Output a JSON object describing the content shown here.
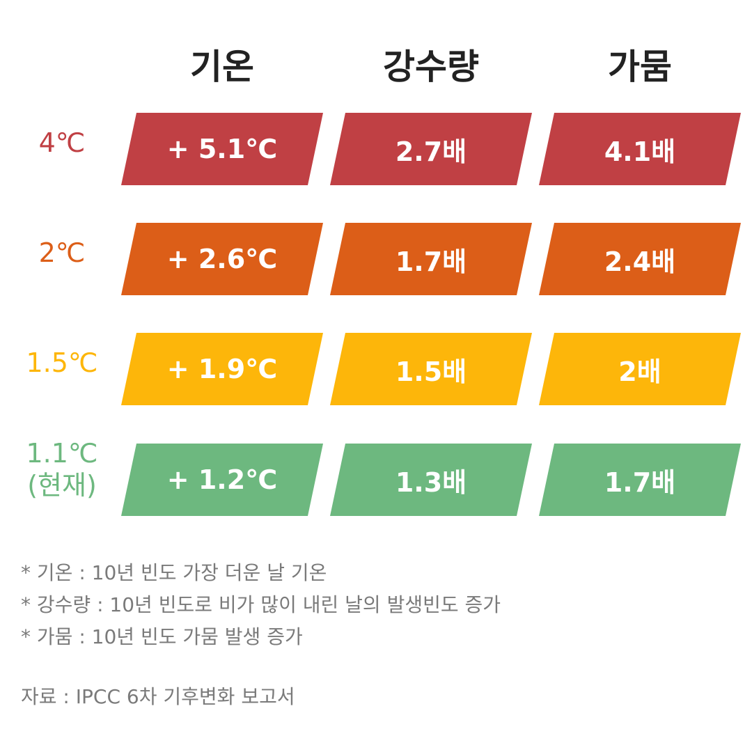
{
  "colors": {
    "row_4c": "#c04044",
    "row_2c": "#dc5e18",
    "row_15c": "#fdb60a",
    "row_11c": "#6db87f",
    "header_text": "#222222",
    "note_text": "#7a7a7a"
  },
  "headers": [
    "기온",
    "강수량",
    "가뭄"
  ],
  "rows": [
    {
      "label": [
        "4℃"
      ],
      "cells": [
        "+ 5.1℃",
        "2.7배",
        "4.1배"
      ]
    },
    {
      "label": [
        "2℃"
      ],
      "cells": [
        "+ 2.6℃",
        "1.7배",
        "2.4배"
      ]
    },
    {
      "label": [
        "1.5℃"
      ],
      "cells": [
        "+ 1.9℃",
        "1.5배",
        "2배"
      ]
    },
    {
      "label": [
        "1.1℃",
        "(현재)"
      ],
      "cells": [
        "+ 1.2℃",
        "1.3배",
        "1.7배"
      ]
    }
  ],
  "notes": [
    "* 기온 : 10년 빈도 가장 더운 날 기온",
    "* 강수량 : 10년 빈도로 비가 많이 내린 날의 발생빈도 증가",
    "* 가뭄 : 10년 빈도 가뭄 발생 증가"
  ],
  "source": "자료 : IPCC 6차 기후변화 보고서"
}
